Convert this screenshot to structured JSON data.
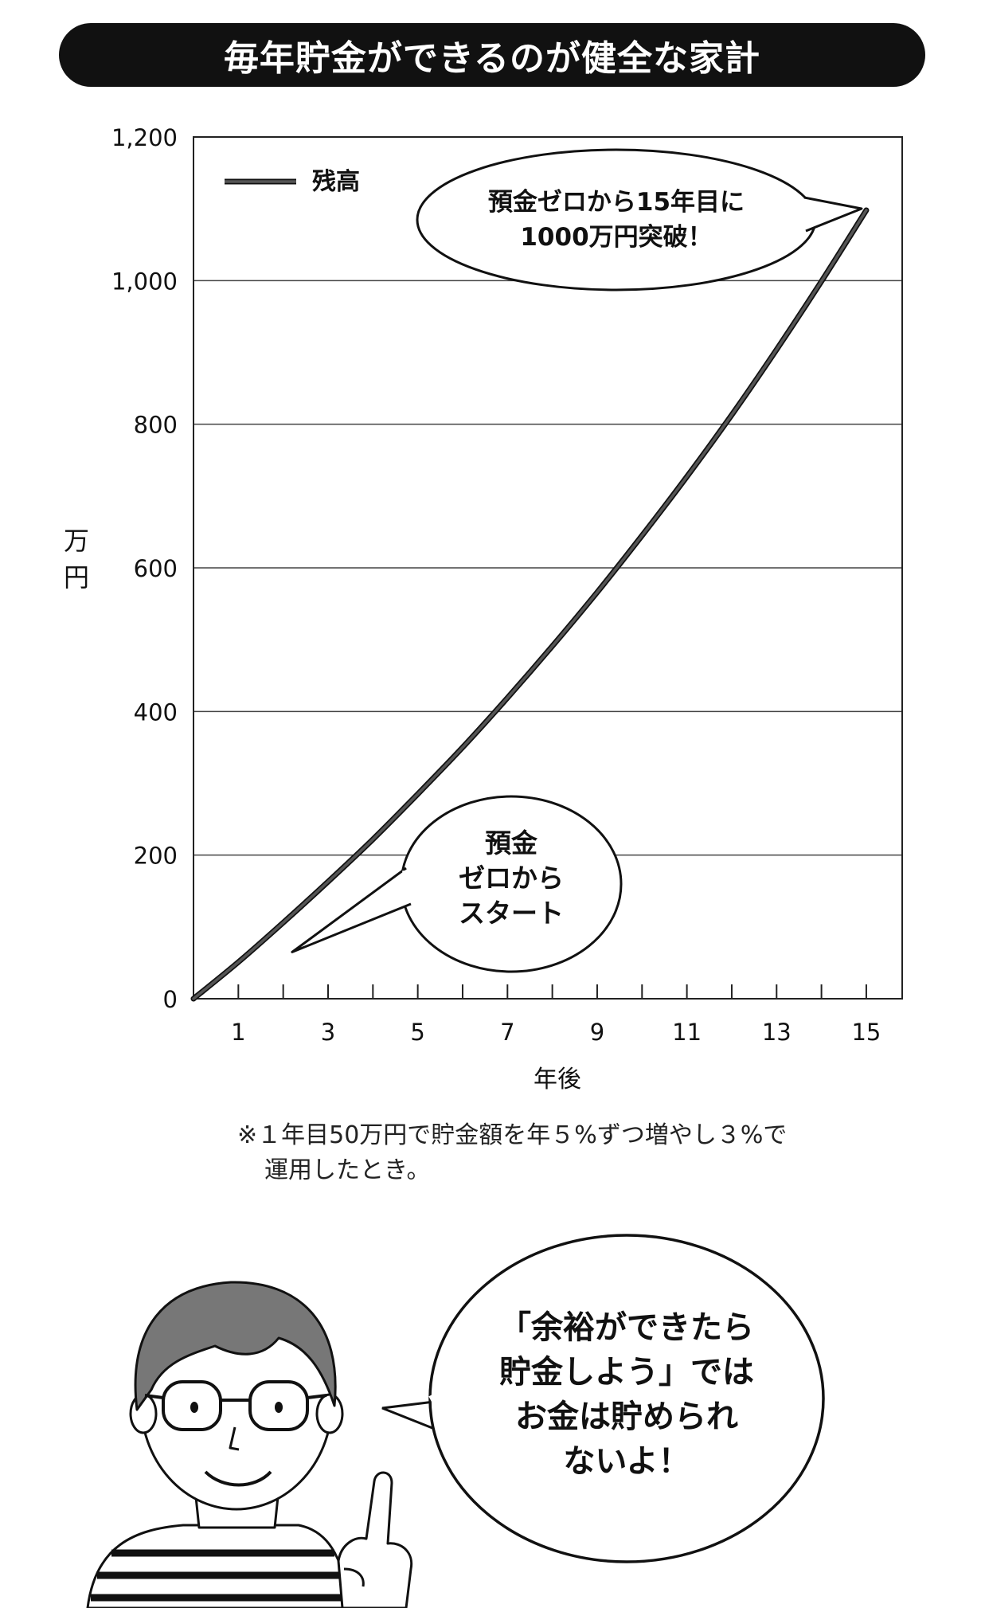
{
  "header": {
    "title": "毎年貯金ができるのが健全な家計"
  },
  "chart_data": {
    "type": "line",
    "title": "毎年貯金ができるのが健全な家計",
    "xlabel": "年後",
    "ylabel": "万円",
    "ylabel_chars": [
      "万",
      "円"
    ],
    "xlim": [
      0,
      15.8
    ],
    "ylim": [
      0,
      1200
    ],
    "xticks": [
      1,
      3,
      5,
      7,
      9,
      11,
      13,
      15
    ],
    "xminor": [
      2,
      4,
      6,
      8,
      10,
      12,
      14
    ],
    "yticks": [
      0,
      200,
      400,
      600,
      800,
      1000,
      1200
    ],
    "ytick_labels": [
      "0",
      "200",
      "400",
      "600",
      "800",
      "1,000",
      "1,200"
    ],
    "grid": true,
    "legend_position": "top-left",
    "series": [
      {
        "name": "残高",
        "color": "#555555",
        "x": [
          0,
          1,
          2,
          3,
          4,
          5,
          6,
          7,
          8,
          9,
          10,
          11,
          12,
          13,
          14,
          15
        ],
        "values": [
          0,
          51,
          106,
          163,
          222,
          285,
          350,
          419,
          491,
          566,
          645,
          727,
          813,
          904,
          999,
          1098
        ]
      }
    ],
    "annotations": [
      {
        "id": "start",
        "lines": [
          "預金",
          "ゼロから",
          "スタート"
        ],
        "points_to": [
          2.2,
          65
        ]
      },
      {
        "id": "end",
        "lines": [
          "預金ゼロから15年目に",
          "1000万円突破！"
        ],
        "points_to": [
          15,
          1098
        ]
      }
    ]
  },
  "footnote": {
    "line1": "※１年目50万円で貯金額を年５%ずつ増やし３%で",
    "line2": "運用したとき。"
  },
  "illustration": {
    "speech_lines": [
      "「余裕ができたら",
      "貯金しよう」では",
      "お金は貯められ",
      "ないよ！"
    ]
  }
}
